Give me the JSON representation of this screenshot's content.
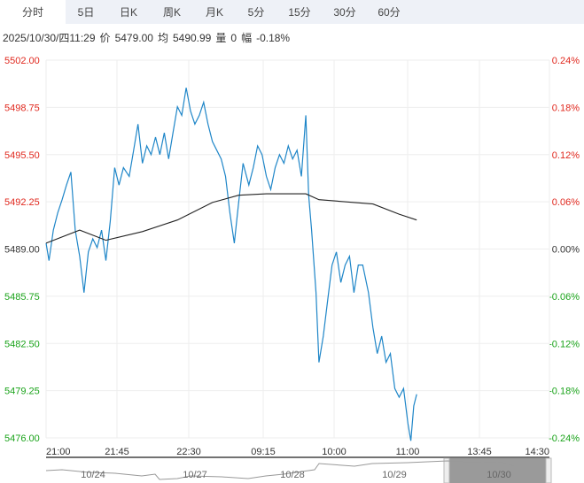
{
  "tabs": [
    "分时",
    "5日",
    "日K",
    "周K",
    "月K",
    "5分",
    "15分",
    "30分",
    "60分"
  ],
  "info": {
    "datetime": "2025/10/30/四11:29",
    "price_label": "价",
    "price": "5479.00",
    "avg_label": "均",
    "avg": "5490.99",
    "vol_label": "量",
    "vol": "0",
    "chg_label": "幅",
    "chg": "-0.18%"
  },
  "colors": {
    "price": "#1f86c8",
    "avg": "#222222",
    "up": "#e0281e",
    "down": "#1aa31a"
  },
  "chart_data": {
    "type": "line",
    "title": "",
    "ylim": [
      5476,
      5502
    ],
    "base": 5489.0,
    "y_ticks_left": [
      "5502.00",
      "5498.75",
      "5495.50",
      "5492.25",
      "5489.00",
      "5485.75",
      "5482.50",
      "5479.25",
      "5476.00"
    ],
    "y_ticks_right": [
      "0.24%",
      "0.18%",
      "0.12%",
      "0.06%",
      "0.00%",
      "-0.06%",
      "-0.12%",
      "-0.18%",
      "-0.24%"
    ],
    "x_ticks": [
      "21:00",
      "21:45",
      "22:30",
      "09:15",
      "10:00",
      "11:00",
      "13:45",
      "14:30"
    ],
    "x_range_minutes": [
      0,
      345
    ],
    "series": [
      {
        "name": "价",
        "points": [
          [
            0,
            5489.4
          ],
          [
            2,
            5488.2
          ],
          [
            5,
            5490.3
          ],
          [
            8,
            5491.5
          ],
          [
            11,
            5492.4
          ],
          [
            14,
            5493.4
          ],
          [
            17,
            5494.3
          ],
          [
            20,
            5490.3
          ],
          [
            23,
            5488.5
          ],
          [
            26,
            5486.0
          ],
          [
            29,
            5488.8
          ],
          [
            32,
            5489.7
          ],
          [
            35,
            5489.1
          ],
          [
            38,
            5490.3
          ],
          [
            41,
            5488.2
          ],
          [
            44,
            5490.9
          ],
          [
            47,
            5494.6
          ],
          [
            50,
            5493.4
          ],
          [
            53,
            5494.6
          ],
          [
            57,
            5494.0
          ],
          [
            60,
            5495.8
          ],
          [
            63,
            5497.6
          ],
          [
            66,
            5494.9
          ],
          [
            69,
            5496.1
          ],
          [
            72,
            5495.5
          ],
          [
            75,
            5496.7
          ],
          [
            78,
            5495.5
          ],
          [
            81,
            5497.0
          ],
          [
            84,
            5495.2
          ],
          [
            87,
            5497.0
          ],
          [
            90,
            5498.8
          ],
          [
            93,
            5498.2
          ],
          [
            96,
            5500.1
          ],
          [
            99,
            5498.5
          ],
          [
            102,
            5497.6
          ],
          [
            105,
            5498.2
          ],
          [
            108,
            5499.1
          ],
          [
            111,
            5497.6
          ],
          [
            114,
            5496.4
          ],
          [
            117,
            5495.8
          ],
          [
            120,
            5495.2
          ],
          [
            123,
            5494.0
          ],
          [
            126,
            5491.5
          ],
          [
            129,
            5489.4
          ],
          [
            132,
            5492.2
          ],
          [
            135,
            5494.9
          ],
          [
            139,
            5493.4
          ],
          [
            142,
            5494.6
          ],
          [
            145,
            5496.1
          ],
          [
            148,
            5495.5
          ],
          [
            151,
            5494.0
          ],
          [
            154,
            5493.1
          ],
          [
            157,
            5494.6
          ],
          [
            160,
            5495.5
          ],
          [
            163,
            5494.9
          ],
          [
            166,
            5496.1
          ],
          [
            169,
            5495.2
          ],
          [
            172,
            5495.8
          ],
          [
            175,
            5494.0
          ],
          [
            178,
            5498.2
          ],
          [
            180,
            5492.7
          ],
          [
            182,
            5490.3
          ],
          [
            185,
            5486.0
          ],
          [
            187,
            5481.2
          ],
          [
            190,
            5483.0
          ],
          [
            193,
            5485.5
          ],
          [
            196,
            5487.9
          ],
          [
            199,
            5488.8
          ],
          [
            202,
            5486.7
          ],
          [
            205,
            5487.9
          ],
          [
            208,
            5488.5
          ],
          [
            211,
            5486.0
          ],
          [
            214,
            5487.9
          ],
          [
            217,
            5487.9
          ],
          [
            221,
            5486.0
          ],
          [
            224,
            5483.6
          ],
          [
            227,
            5481.8
          ],
          [
            230,
            5483.0
          ],
          [
            233,
            5481.2
          ],
          [
            236,
            5481.8
          ],
          [
            239,
            5479.4
          ],
          [
            242,
            5478.8
          ],
          [
            245,
            5479.4
          ],
          [
            248,
            5477.0
          ],
          [
            250,
            5475.8
          ],
          [
            252,
            5478.2
          ],
          [
            254,
            5479.0
          ]
        ]
      },
      {
        "name": "均",
        "points": [
          [
            0,
            5489.4
          ],
          [
            23,
            5490.3
          ],
          [
            41,
            5489.6
          ],
          [
            66,
            5490.2
          ],
          [
            90,
            5491.0
          ],
          [
            114,
            5492.2
          ],
          [
            132,
            5492.7
          ],
          [
            151,
            5492.8
          ],
          [
            178,
            5492.8
          ],
          [
            187,
            5492.4
          ],
          [
            224,
            5492.1
          ],
          [
            242,
            5491.4
          ],
          [
            254,
            5491.0
          ]
        ]
      }
    ]
  },
  "navigator": {
    "dates": [
      "10/24",
      "10/27",
      "10/28",
      "10/29",
      "10/30"
    ],
    "selected": "10/30"
  }
}
